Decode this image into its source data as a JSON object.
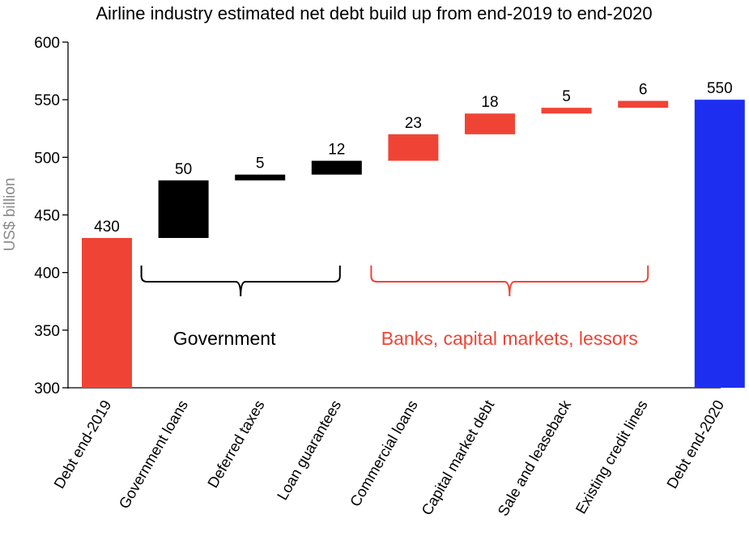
{
  "chart_data": {
    "type": "bar",
    "subtype": "waterfall",
    "title": "Airline industry estimated net debt build up from end-2019 to end-2020",
    "ylabel": "US$ billion",
    "ylim": [
      300,
      600
    ],
    "yticks": [
      300,
      350,
      400,
      450,
      500,
      550,
      600
    ],
    "grid": false,
    "bars": [
      {
        "category": "Debt  end-2019",
        "kind": "total",
        "base": 300,
        "top": 430,
        "label": "430",
        "color": "#ef4435"
      },
      {
        "category": "Government loans",
        "kind": "delta",
        "base": 430,
        "top": 480,
        "label": "50",
        "color": "#000000"
      },
      {
        "category": "Deferred taxes",
        "kind": "delta",
        "base": 480,
        "top": 485,
        "label": "5",
        "color": "#000000"
      },
      {
        "category": "Loan guarantees",
        "kind": "delta",
        "base": 485,
        "top": 497,
        "label": "12",
        "color": "#000000"
      },
      {
        "category": "Commercial loans",
        "kind": "delta",
        "base": 497,
        "top": 520,
        "label": "23",
        "color": "#ef4435"
      },
      {
        "category": "Capital market debt",
        "kind": "delta",
        "base": 520,
        "top": 538,
        "label": "18",
        "color": "#ef4435"
      },
      {
        "category": "Sale and leaseback",
        "kind": "delta",
        "base": 538,
        "top": 543,
        "label": "5",
        "color": "#ef4435"
      },
      {
        "category": "Existing credit lines",
        "kind": "delta",
        "base": 543,
        "top": 549,
        "label": "6",
        "color": "#ef4435"
      },
      {
        "category": "Debt  end-2020",
        "kind": "total",
        "base": 300,
        "top": 550,
        "label": "550",
        "color": "#1e2ef0"
      }
    ],
    "groups": [
      {
        "label": "Government",
        "from": 1,
        "to": 3,
        "color": "#000000"
      },
      {
        "label": "Banks, capital markets, lessors",
        "from": 4,
        "to": 7,
        "color": "#ef4435"
      }
    ]
  }
}
